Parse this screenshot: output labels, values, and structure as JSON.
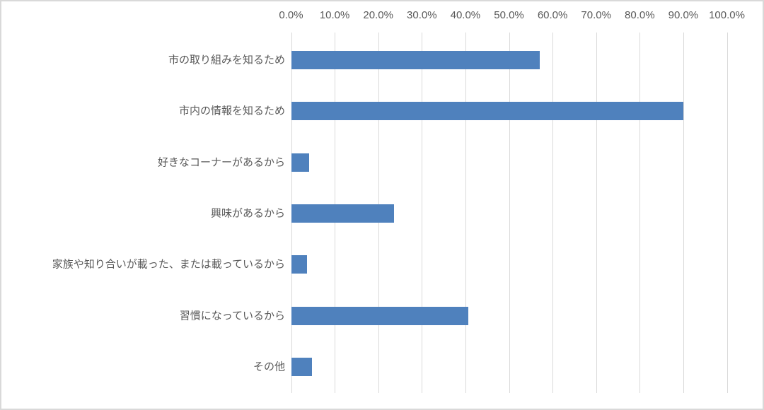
{
  "chart_data": {
    "type": "bar",
    "orientation": "horizontal",
    "title": "",
    "xlabel": "",
    "ylabel": "",
    "categories": [
      "市の取り組みを知るため",
      "市内の情報を知るため",
      "好きなコーナーがあるから",
      "興味があるから",
      "家族や知り合いが載った、または載っているから",
      "習慣になっているから",
      "その他"
    ],
    "values": [
      57.0,
      90.0,
      4.1,
      23.7,
      3.6,
      40.6,
      4.8
    ],
    "unit": "%",
    "xlim": [
      0,
      100
    ],
    "tick_interval": 10,
    "x_tick_labels": [
      "0.0%",
      "10.0%",
      "20.0%",
      "30.0%",
      "40.0%",
      "50.0%",
      "60.0%",
      "70.0%",
      "80.0%",
      "90.0%",
      "100.0%"
    ],
    "axis_position": "top",
    "grid": true,
    "legend": false,
    "colors": {
      "bar_fill": "#4f81bd",
      "gridline": "#d9d9d9",
      "frame_border": "#d9d9d9",
      "text": "#595959",
      "background": "#ffffff"
    }
  }
}
